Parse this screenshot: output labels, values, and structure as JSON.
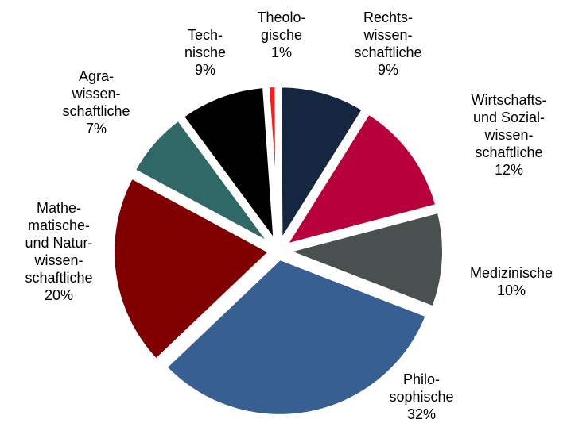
{
  "chart_data": {
    "type": "pie",
    "slices": [
      {
        "lines": [
          "Theolo-",
          "gische"
        ],
        "percent_label": "1%",
        "value": 1,
        "color": "#ff1a1a"
      },
      {
        "lines": [
          "Rechts-",
          "wissen-",
          "schaftliche"
        ],
        "percent_label": "9%",
        "value": 9,
        "color": "#142640"
      },
      {
        "lines": [
          "Wirtschafts-",
          "und Sozial-",
          "wissen-",
          "schaftliche"
        ],
        "percent_label": "12%",
        "value": 12,
        "color": "#b8003a"
      },
      {
        "lines": [
          "Medizinische"
        ],
        "percent_label": "10%",
        "value": 10,
        "color": "#4a5050"
      },
      {
        "lines": [
          "Philo-",
          "sophische"
        ],
        "percent_label": "32%",
        "value": 32,
        "color": "#375f92"
      },
      {
        "lines": [
          "Mathe-",
          "matische-",
          "und Natur-",
          "wissen-",
          "schaftliche"
        ],
        "percent_label": "20%",
        "value": 20,
        "color": "#800000"
      },
      {
        "lines": [
          "Agra-",
          "wissen-",
          "schaftliche"
        ],
        "percent_label": "7%",
        "value": 7,
        "color": "#306867"
      },
      {
        "lines": [
          "Tech-",
          "nische"
        ],
        "percent_label": "9%",
        "value": 9,
        "color": "#000000"
      }
    ]
  }
}
